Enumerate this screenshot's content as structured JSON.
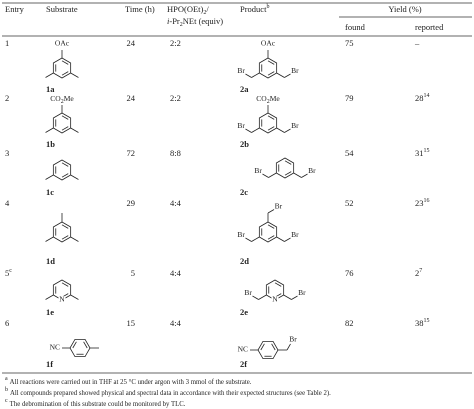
{
  "table": {
    "header": {
      "entry": "Entry",
      "substrate": "Substrate",
      "time": "Time (h)",
      "reagent_1": [
        "HPO(OEt)",
        "2",
        "/"
      ],
      "reagent_2": [
        "i",
        "-Pr",
        "2",
        "NEt (equiv)"
      ],
      "product": "Product",
      "product_note": "b",
      "yield": "Yield (%)",
      "found": "found",
      "reported": "reported"
    },
    "rows": [
      {
        "entry": "1",
        "substrate": "1a",
        "time": 24,
        "equiv": "2:2",
        "product": "2a",
        "found": 75,
        "reported": "–",
        "substrate_groups": [
          "OAc"
        ],
        "product_groups": [
          "OAc",
          "Br",
          "Br"
        ]
      },
      {
        "entry": "2",
        "substrate": "1b",
        "time": 24,
        "equiv": "2:2",
        "product": "2b",
        "found": 79,
        "reported": "28",
        "reported_ref": "14",
        "substrate_groups": [
          [
            "CO",
            "2",
            "Me"
          ]
        ],
        "product_groups": [
          [
            "CO",
            "2",
            "Me"
          ],
          "Br",
          "Br"
        ]
      },
      {
        "entry": "3",
        "substrate": "1c",
        "time": 72,
        "equiv": "8:8",
        "product": "2c",
        "found": 54,
        "reported": "31",
        "reported_ref": "15",
        "product_groups": [
          "Br",
          "Br"
        ]
      },
      {
        "entry": "4",
        "substrate": "1d",
        "time": 29,
        "equiv": "4:4",
        "product": "2d",
        "found": 52,
        "reported": "23",
        "reported_ref": "16",
        "product_groups": [
          "Br",
          "Br",
          "Br"
        ]
      },
      {
        "entry": "5",
        "entry_note": "c",
        "substrate": "1e",
        "time": 5,
        "equiv": "4:4",
        "product": "2e",
        "found": 76,
        "reported": "2",
        "reported_ref": "7",
        "substrate_groups": [
          "N"
        ],
        "product_groups": [
          "N",
          "Br",
          "Br"
        ]
      },
      {
        "entry": "6",
        "substrate": "1f",
        "time": 15,
        "equiv": "4:4",
        "product": "2f",
        "found": 82,
        "reported": "38",
        "reported_ref": "15",
        "substrate_groups": [
          "NC"
        ],
        "product_groups": [
          "NC",
          "Br"
        ]
      }
    ],
    "footnotes": [
      {
        "mark": "a",
        "text": "All reactions were carried out in THF at 25 °C under argon with 3 mmol of the substrate."
      },
      {
        "mark": "b",
        "text": "All compounds prepared showed physical and spectral data in accordance with their expected structures (see Table 2)."
      },
      {
        "mark": "c",
        "text": "The debromination of this substrate could be monitored by TLC."
      }
    ]
  }
}
